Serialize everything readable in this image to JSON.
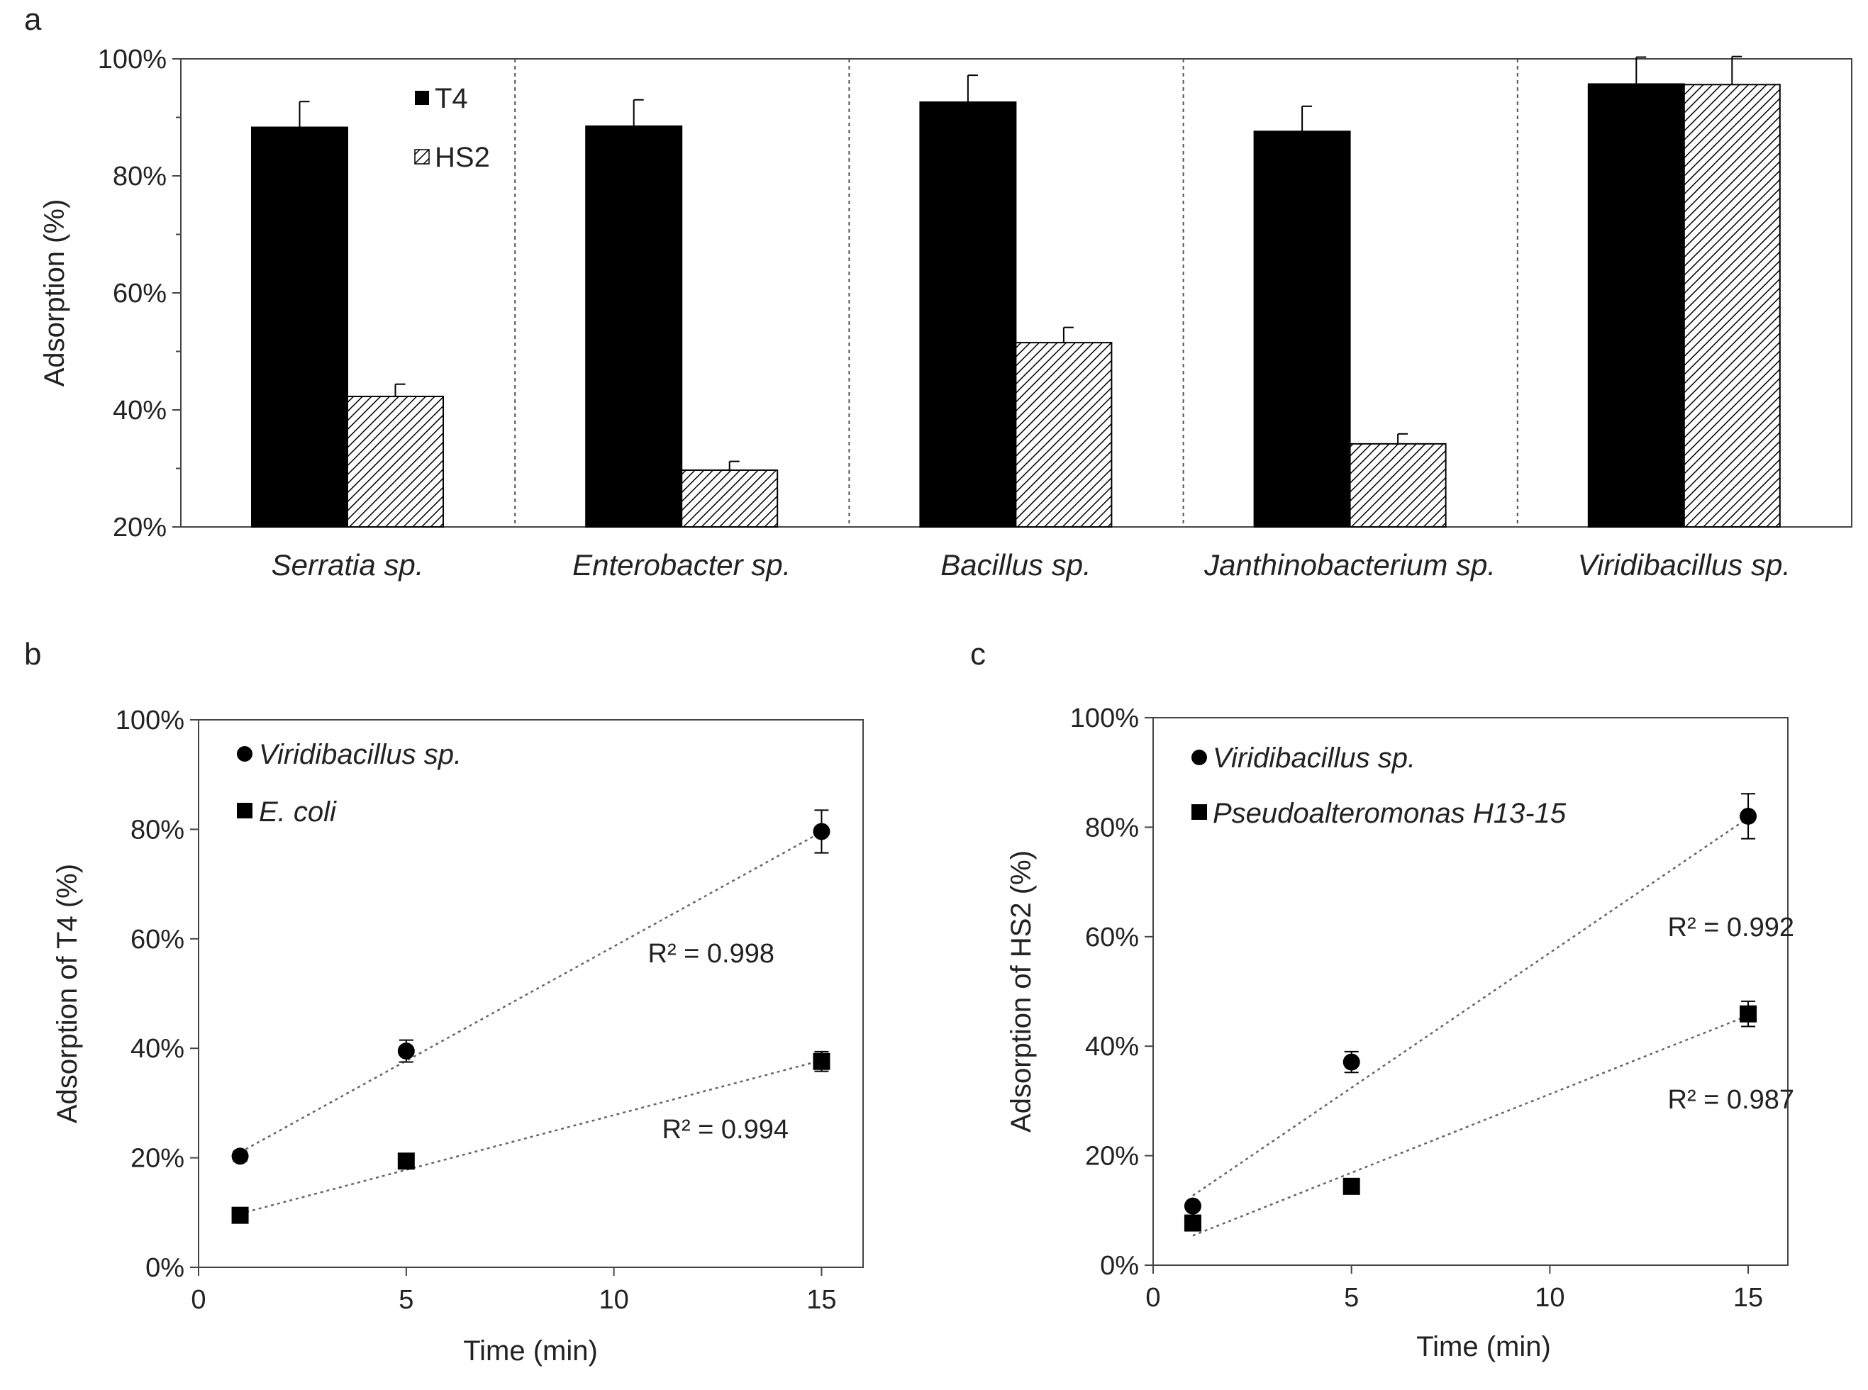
{
  "chart_data": [
    {
      "panel_label": "a",
      "type": "bar",
      "ylabel": "Adsorption (%)",
      "ylim": [
        20,
        100
      ],
      "yticks": [
        20,
        40,
        60,
        80,
        100
      ],
      "ytick_labels": [
        "20%",
        "40%",
        "60%",
        "80%",
        "100%"
      ],
      "categories": [
        "Serratia sp.",
        "Enterobacter sp.",
        "Bacillus sp.",
        "Janthinobacterium sp.",
        "Viridibacillus sp."
      ],
      "series": [
        {
          "name": "T4",
          "fill": "#000000",
          "values": [
            88.3,
            88.5,
            92.6,
            87.6,
            95.7
          ],
          "errors": [
            4.4,
            4.5,
            4.6,
            4.3,
            4.6
          ]
        },
        {
          "name": "HS2",
          "fill": "hatch",
          "values": [
            42.3,
            29.7,
            51.5,
            34.2,
            95.6
          ],
          "errors": [
            2.1,
            1.5,
            2.6,
            1.7,
            4.8
          ]
        }
      ],
      "separators": "dashed",
      "legend": "top-left"
    },
    {
      "panel_label": "b",
      "type": "scatter",
      "xlabel": "Time (min)",
      "ylabel": "Adsorption of T4 (%)",
      "xlim": [
        0,
        16
      ],
      "xticks": [
        0,
        5,
        10,
        15
      ],
      "xtick_labels": [
        "0",
        "5",
        "10",
        "15"
      ],
      "ylim": [
        0,
        100
      ],
      "yticks": [
        0,
        20,
        40,
        60,
        80,
        100
      ],
      "ytick_labels": [
        "0%",
        "20%",
        "40%",
        "60%",
        "80%",
        "100%"
      ],
      "series": [
        {
          "name": "Viridibacillus sp.",
          "marker": "circle",
          "x": [
            1,
            5,
            15
          ],
          "y": [
            20.3,
            39.5,
            79.6
          ],
          "errors": [
            0.9,
            2.0,
            3.9
          ],
          "trend": [
            21.0,
            79.5
          ],
          "r2": "R² = 0.998"
        },
        {
          "name": "E. coli",
          "marker": "square",
          "x": [
            1,
            5,
            15
          ],
          "y": [
            9.5,
            19.4,
            37.6
          ],
          "errors": [
            0.5,
            0.9,
            1.8
          ],
          "trend": [
            9.8,
            37.8
          ],
          "r2": "R² = 0.994"
        }
      ],
      "legend": "top-left"
    },
    {
      "panel_label": "c",
      "type": "scatter",
      "xlabel": "Time (min)",
      "ylabel": "Adsorption of HS2 (%)",
      "xlim": [
        0,
        16
      ],
      "xticks": [
        0,
        5,
        10,
        15
      ],
      "xtick_labels": [
        "0",
        "5",
        "10",
        "15"
      ],
      "ylim": [
        0,
        100
      ],
      "yticks": [
        0,
        20,
        40,
        60,
        80,
        100
      ],
      "ytick_labels": [
        "0%",
        "20%",
        "40%",
        "60%",
        "80%",
        "100%"
      ],
      "series": [
        {
          "name": "Viridibacillus sp.",
          "marker": "circle",
          "x": [
            1,
            5,
            15
          ],
          "y": [
            10.8,
            37.1,
            82.0
          ],
          "errors": [
            0.6,
            1.9,
            4.1
          ],
          "trend": [
            12.7,
            81.7
          ],
          "r2": "R² = 0.992"
        },
        {
          "name": "Pseudoalteromonas H13-15",
          "marker": "square",
          "x": [
            1,
            5,
            15
          ],
          "y": [
            7.7,
            14.4,
            45.9
          ],
          "errors": [
            0.5,
            0.8,
            2.3
          ],
          "trend": [
            5.4,
            45.6
          ],
          "r2": "R² = 0.987"
        }
      ],
      "legend": "top-left"
    }
  ]
}
